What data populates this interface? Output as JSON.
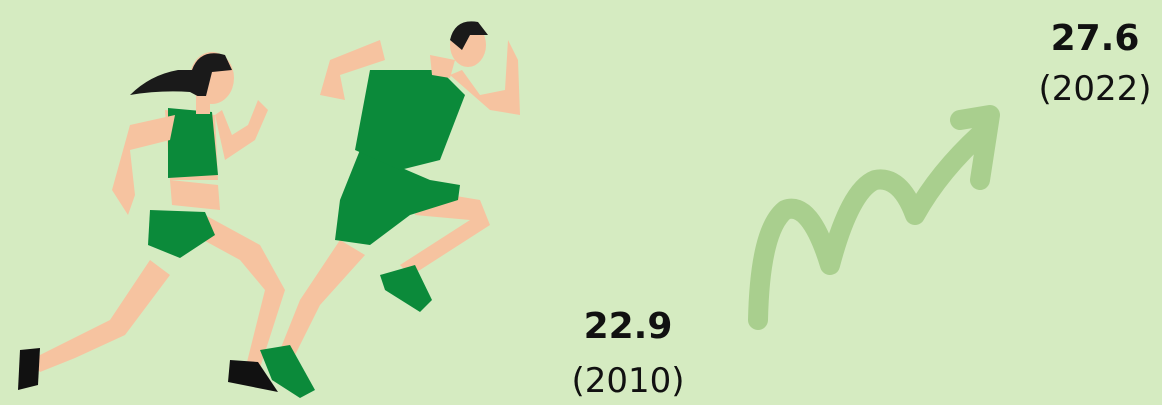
{
  "stats": [
    {
      "value": 22.9,
      "year": "(2010)"
    },
    {
      "value": 27.6,
      "year": "(2022)"
    }
  ]
}
